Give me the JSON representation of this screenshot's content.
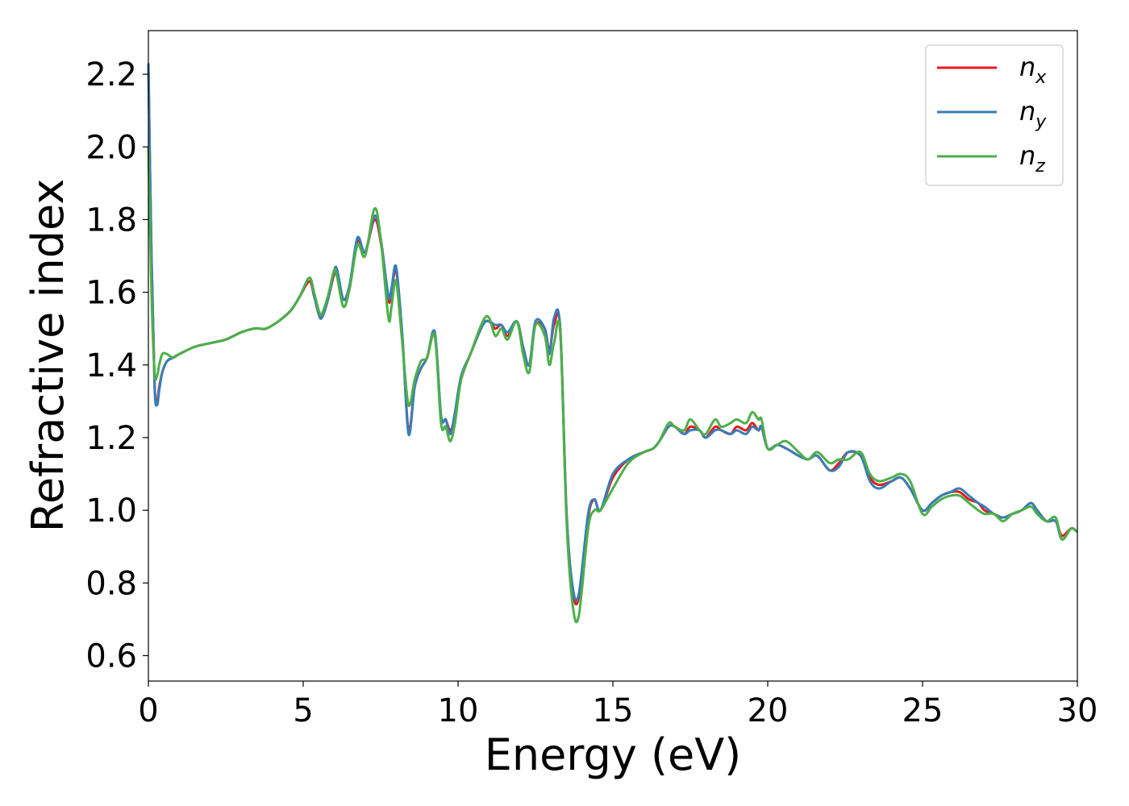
{
  "chart_data": {
    "type": "line",
    "title": "",
    "xlabel": "Energy (eV)",
    "ylabel": "Refractive index",
    "xlim": [
      0,
      30
    ],
    "ylim": [
      0.53,
      2.32
    ],
    "xticks": [
      0,
      5,
      10,
      15,
      20,
      25,
      30
    ],
    "xtick_labels": [
      "0",
      "5",
      "10",
      "15",
      "20",
      "25",
      "30"
    ],
    "yticks": [
      0.6,
      0.8,
      1.0,
      1.2,
      1.4,
      1.6,
      1.8,
      2.0,
      2.2
    ],
    "ytick_labels": [
      "0.6",
      "0.8",
      "1.0",
      "1.2",
      "1.4",
      "1.6",
      "1.8",
      "2.0",
      "2.2"
    ],
    "grid": false,
    "legend_position": "top-right",
    "series": [
      {
        "name": "n_x",
        "label_base": "n",
        "label_sub": "x",
        "color": "#e41a1c",
        "x": [
          0.0,
          0.1,
          0.2,
          0.28,
          0.35,
          0.45,
          0.6,
          0.8,
          1.0,
          1.5,
          2.0,
          2.5,
          3.0,
          3.4,
          3.6,
          3.8,
          4.2,
          4.6,
          4.9,
          5.2,
          5.35,
          5.5,
          5.6,
          5.8,
          6.0,
          6.1,
          6.3,
          6.5,
          6.75,
          7.0,
          7.3,
          7.5,
          7.75,
          7.85,
          8.0,
          8.2,
          8.4,
          8.6,
          8.8,
          9.0,
          9.25,
          9.45,
          9.6,
          9.75,
          9.9,
          10.1,
          10.4,
          10.8,
          11.0,
          11.2,
          11.4,
          11.6,
          11.9,
          12.1,
          12.3,
          12.5,
          12.8,
          12.95,
          13.1,
          13.3,
          13.5,
          13.7,
          13.9,
          14.2,
          14.4,
          14.6,
          15.0,
          15.5,
          16.0,
          16.3,
          16.5,
          16.8,
          17.0,
          17.3,
          17.5,
          17.8,
          18.0,
          18.3,
          18.5,
          18.8,
          19.0,
          19.3,
          19.5,
          19.7,
          19.8,
          20.0,
          20.3,
          20.6,
          21.0,
          21.3,
          21.6,
          22.0,
          22.3,
          22.6,
          23.0,
          23.3,
          23.6,
          24.0,
          24.3,
          24.6,
          25.0,
          25.3,
          25.6,
          25.9,
          26.2,
          26.5,
          26.8,
          27.0,
          27.3,
          27.6,
          27.9,
          28.2,
          28.5,
          28.7,
          29.0,
          29.3,
          29.5,
          29.8,
          30.0
        ],
        "y": [
          2.23,
          1.7,
          1.35,
          1.3,
          1.34,
          1.38,
          1.41,
          1.42,
          1.43,
          1.45,
          1.46,
          1.47,
          1.49,
          1.5,
          1.5,
          1.5,
          1.52,
          1.55,
          1.59,
          1.63,
          1.59,
          1.54,
          1.53,
          1.58,
          1.65,
          1.65,
          1.58,
          1.62,
          1.74,
          1.71,
          1.8,
          1.74,
          1.58,
          1.6,
          1.66,
          1.48,
          1.22,
          1.34,
          1.39,
          1.42,
          1.48,
          1.26,
          1.25,
          1.22,
          1.26,
          1.36,
          1.43,
          1.51,
          1.52,
          1.5,
          1.51,
          1.48,
          1.52,
          1.45,
          1.4,
          1.51,
          1.5,
          1.44,
          1.51,
          1.5,
          1.0,
          0.78,
          0.76,
          0.98,
          1.03,
          1.0,
          1.09,
          1.14,
          1.16,
          1.17,
          1.19,
          1.23,
          1.23,
          1.21,
          1.23,
          1.22,
          1.2,
          1.23,
          1.22,
          1.21,
          1.23,
          1.22,
          1.24,
          1.22,
          1.23,
          1.17,
          1.18,
          1.17,
          1.15,
          1.14,
          1.15,
          1.11,
          1.13,
          1.16,
          1.15,
          1.09,
          1.07,
          1.08,
          1.09,
          1.06,
          1.0,
          1.02,
          1.04,
          1.05,
          1.05,
          1.03,
          1.02,
          1.0,
          0.99,
          0.98,
          0.99,
          1.0,
          1.02,
          1.0,
          0.97,
          0.97,
          0.93,
          0.95,
          0.94
        ]
      },
      {
        "name": "n_y",
        "label_base": "n",
        "label_sub": "y",
        "color": "#377eb8",
        "x": [
          0.0,
          0.1,
          0.2,
          0.28,
          0.35,
          0.45,
          0.6,
          0.8,
          1.0,
          1.5,
          2.0,
          2.5,
          3.0,
          3.4,
          3.6,
          3.8,
          4.2,
          4.6,
          4.9,
          5.2,
          5.35,
          5.5,
          5.6,
          5.8,
          6.0,
          6.1,
          6.3,
          6.5,
          6.75,
          7.0,
          7.3,
          7.5,
          7.75,
          7.85,
          8.0,
          8.2,
          8.4,
          8.6,
          8.8,
          9.0,
          9.25,
          9.45,
          9.6,
          9.75,
          9.9,
          10.1,
          10.4,
          10.8,
          11.0,
          11.2,
          11.4,
          11.6,
          11.9,
          12.1,
          12.3,
          12.5,
          12.8,
          12.95,
          13.1,
          13.3,
          13.5,
          13.7,
          13.9,
          14.2,
          14.4,
          14.6,
          15.0,
          15.5,
          16.0,
          16.3,
          16.5,
          16.8,
          17.0,
          17.3,
          17.5,
          17.8,
          18.0,
          18.3,
          18.5,
          18.8,
          19.0,
          19.3,
          19.5,
          19.7,
          19.8,
          20.0,
          20.3,
          20.6,
          21.0,
          21.3,
          21.6,
          22.0,
          22.3,
          22.6,
          23.0,
          23.3,
          23.6,
          24.0,
          24.3,
          24.6,
          25.0,
          25.3,
          25.6,
          25.9,
          26.2,
          26.5,
          26.8,
          27.0,
          27.3,
          27.6,
          27.9,
          28.2,
          28.5,
          28.7,
          29.0,
          29.3,
          29.5,
          29.8,
          30.0
        ],
        "y": [
          2.23,
          1.7,
          1.34,
          1.29,
          1.33,
          1.38,
          1.41,
          1.42,
          1.43,
          1.45,
          1.46,
          1.47,
          1.49,
          1.5,
          1.5,
          1.5,
          1.52,
          1.55,
          1.59,
          1.64,
          1.59,
          1.54,
          1.53,
          1.58,
          1.66,
          1.66,
          1.58,
          1.62,
          1.75,
          1.71,
          1.81,
          1.75,
          1.59,
          1.61,
          1.67,
          1.48,
          1.21,
          1.34,
          1.39,
          1.42,
          1.49,
          1.26,
          1.25,
          1.21,
          1.27,
          1.37,
          1.43,
          1.51,
          1.52,
          1.51,
          1.51,
          1.49,
          1.52,
          1.45,
          1.4,
          1.52,
          1.5,
          1.43,
          1.53,
          1.5,
          1.0,
          0.79,
          0.77,
          0.99,
          1.03,
          1.0,
          1.1,
          1.14,
          1.16,
          1.17,
          1.19,
          1.23,
          1.23,
          1.21,
          1.22,
          1.22,
          1.2,
          1.22,
          1.22,
          1.21,
          1.22,
          1.21,
          1.23,
          1.22,
          1.23,
          1.17,
          1.18,
          1.17,
          1.15,
          1.14,
          1.15,
          1.11,
          1.12,
          1.16,
          1.15,
          1.08,
          1.06,
          1.08,
          1.09,
          1.06,
          1.0,
          1.02,
          1.04,
          1.05,
          1.06,
          1.04,
          1.02,
          1.01,
          0.99,
          0.98,
          0.99,
          1.0,
          1.02,
          1.0,
          0.97,
          0.97,
          0.92,
          0.95,
          0.94
        ]
      },
      {
        "name": "n_z",
        "label_base": "n",
        "label_sub": "z",
        "color": "#4daf4a",
        "x": [
          0.0,
          0.1,
          0.2,
          0.28,
          0.35,
          0.45,
          0.6,
          0.8,
          1.0,
          1.5,
          2.0,
          2.5,
          3.0,
          3.4,
          3.6,
          3.8,
          4.2,
          4.6,
          4.9,
          5.2,
          5.35,
          5.5,
          5.6,
          5.8,
          6.0,
          6.1,
          6.3,
          6.5,
          6.75,
          7.0,
          7.3,
          7.5,
          7.75,
          7.85,
          8.0,
          8.2,
          8.4,
          8.6,
          8.8,
          9.0,
          9.25,
          9.45,
          9.6,
          9.75,
          9.9,
          10.1,
          10.4,
          10.8,
          11.0,
          11.2,
          11.4,
          11.6,
          11.9,
          12.1,
          12.3,
          12.5,
          12.8,
          12.95,
          13.1,
          13.3,
          13.5,
          13.7,
          13.9,
          14.2,
          14.4,
          14.6,
          15.0,
          15.5,
          16.0,
          16.3,
          16.5,
          16.8,
          17.0,
          17.3,
          17.5,
          17.8,
          18.0,
          18.3,
          18.5,
          18.8,
          19.0,
          19.3,
          19.5,
          19.7,
          19.8,
          20.0,
          20.3,
          20.6,
          21.0,
          21.3,
          21.6,
          22.0,
          22.3,
          22.6,
          23.0,
          23.3,
          23.6,
          24.0,
          24.3,
          24.6,
          25.0,
          25.3,
          25.6,
          25.9,
          26.2,
          26.5,
          26.8,
          27.0,
          27.3,
          27.6,
          27.9,
          28.2,
          28.5,
          28.7,
          29.0,
          29.3,
          29.5,
          29.8,
          30.0
        ],
        "y": [
          2.0,
          1.6,
          1.38,
          1.37,
          1.4,
          1.43,
          1.43,
          1.42,
          1.43,
          1.45,
          1.46,
          1.47,
          1.49,
          1.5,
          1.5,
          1.5,
          1.52,
          1.55,
          1.59,
          1.64,
          1.6,
          1.55,
          1.54,
          1.59,
          1.66,
          1.64,
          1.56,
          1.61,
          1.73,
          1.7,
          1.83,
          1.75,
          1.53,
          1.56,
          1.63,
          1.46,
          1.29,
          1.36,
          1.41,
          1.42,
          1.48,
          1.24,
          1.23,
          1.19,
          1.24,
          1.36,
          1.43,
          1.52,
          1.53,
          1.48,
          1.5,
          1.47,
          1.52,
          1.43,
          1.38,
          1.51,
          1.48,
          1.4,
          1.46,
          1.49,
          0.98,
          0.74,
          0.71,
          0.95,
          1.0,
          1.0,
          1.06,
          1.13,
          1.16,
          1.17,
          1.19,
          1.24,
          1.23,
          1.22,
          1.25,
          1.22,
          1.21,
          1.25,
          1.23,
          1.24,
          1.25,
          1.24,
          1.27,
          1.25,
          1.25,
          1.17,
          1.18,
          1.19,
          1.16,
          1.14,
          1.16,
          1.13,
          1.14,
          1.14,
          1.16,
          1.1,
          1.08,
          1.09,
          1.1,
          1.08,
          0.99,
          1.01,
          1.03,
          1.04,
          1.04,
          1.02,
          1.0,
          0.99,
          0.99,
          0.97,
          0.99,
          1.0,
          1.01,
          0.99,
          0.97,
          0.98,
          0.92,
          0.95,
          0.94
        ]
      }
    ]
  }
}
